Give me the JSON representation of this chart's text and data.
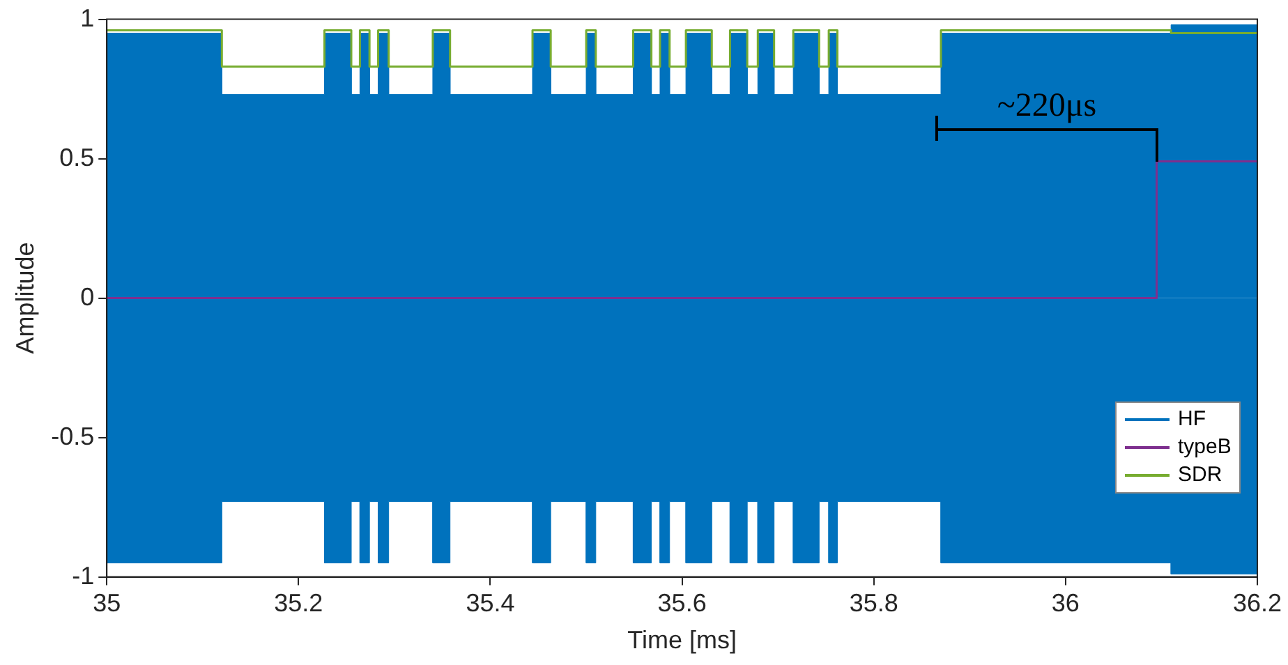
{
  "chart_data": {
    "type": "line",
    "xlabel": "Time [ms]",
    "ylabel": "Amplitude",
    "xlim": [
      35,
      36.2
    ],
    "xticks": [
      35,
      35.2,
      35.4,
      35.6,
      35.8,
      36,
      36.2
    ],
    "ylim": [
      -1,
      1
    ],
    "yticks": [
      -1,
      -0.5,
      0,
      0.5,
      1
    ],
    "grid": false,
    "legend": "bottom right",
    "marker": "none",
    "line_style": "solid",
    "annotations": [
      "~220μs"
    ],
    "series": [
      {
        "name": "HF",
        "type": "area",
        "color": "#0072bd",
        "x": [
          35,
          35.12,
          35.12,
          35.227,
          35.227,
          35.255,
          35.255,
          35.264,
          35.264,
          35.274,
          35.274,
          35.283,
          35.283,
          35.294,
          35.294,
          35.34,
          35.34,
          35.358,
          35.358,
          35.444,
          35.444,
          35.463,
          35.463,
          35.5,
          35.5,
          35.51,
          35.51,
          35.549,
          35.549,
          35.568,
          35.568,
          35.577,
          35.577,
          35.587,
          35.587,
          35.604,
          35.604,
          35.631,
          35.631,
          35.65,
          35.65,
          35.668,
          35.668,
          35.679,
          35.679,
          35.696,
          35.696,
          35.716,
          35.716,
          35.743,
          35.743,
          35.753,
          35.753,
          35.762,
          35.762,
          35.87,
          35.87,
          36.11,
          36.11,
          36.2
        ],
        "values": [
          0.95,
          0.95,
          0.73,
          0.73,
          0.95,
          0.95,
          0.73,
          0.73,
          0.95,
          0.95,
          0.73,
          0.73,
          0.95,
          0.95,
          0.73,
          0.73,
          0.95,
          0.95,
          0.73,
          0.73,
          0.95,
          0.95,
          0.73,
          0.73,
          0.95,
          0.95,
          0.73,
          0.73,
          0.95,
          0.95,
          0.73,
          0.73,
          0.95,
          0.95,
          0.73,
          0.73,
          0.95,
          0.95,
          0.73,
          0.73,
          0.95,
          0.95,
          0.73,
          0.73,
          0.95,
          0.95,
          0.73,
          0.73,
          0.95,
          0.95,
          0.73,
          0.73,
          0.95,
          0.95,
          0.73,
          0.73,
          0.95,
          0.95,
          0.98,
          0.98
        ]
      },
      {
        "type": "area",
        "color": "#0072bd",
        "x": [
          35,
          35.12,
          35.12,
          35.227,
          35.227,
          35.255,
          35.255,
          35.264,
          35.264,
          35.274,
          35.274,
          35.283,
          35.283,
          35.294,
          35.294,
          35.34,
          35.34,
          35.358,
          35.358,
          35.444,
          35.444,
          35.463,
          35.463,
          35.5,
          35.5,
          35.51,
          35.51,
          35.549,
          35.549,
          35.568,
          35.568,
          35.577,
          35.577,
          35.587,
          35.587,
          35.604,
          35.604,
          35.631,
          35.631,
          35.65,
          35.65,
          35.668,
          35.668,
          35.679,
          35.679,
          35.696,
          35.696,
          35.716,
          35.716,
          35.743,
          35.743,
          35.753,
          35.753,
          35.762,
          35.762,
          35.87,
          35.87,
          36.11,
          36.11,
          36.2
        ],
        "values": [
          -0.95,
          -0.95,
          -0.73,
          -0.73,
          -0.95,
          -0.95,
          -0.73,
          -0.73,
          -0.95,
          -0.95,
          -0.73,
          -0.73,
          -0.95,
          -0.95,
          -0.73,
          -0.73,
          -0.95,
          -0.95,
          -0.73,
          -0.73,
          -0.95,
          -0.95,
          -0.73,
          -0.73,
          -0.95,
          -0.95,
          -0.73,
          -0.73,
          -0.95,
          -0.95,
          -0.73,
          -0.73,
          -0.95,
          -0.95,
          -0.73,
          -0.73,
          -0.95,
          -0.95,
          -0.73,
          -0.73,
          -0.95,
          -0.95,
          -0.73,
          -0.73,
          -0.95,
          -0.95,
          -0.73,
          -0.73,
          -0.95,
          -0.95,
          -0.73,
          -0.73,
          -0.95,
          -0.95,
          -0.73,
          -0.73,
          -0.95,
          -0.95,
          -0.99,
          -0.99
        ]
      },
      {
        "name": "typeB",
        "color": "#7e2f8e",
        "x": [
          35,
          36.095,
          36.095,
          36.2
        ],
        "values": [
          0,
          0,
          0.49,
          0.49
        ]
      },
      {
        "name": "SDR",
        "color": "#77ac30",
        "x": [
          35,
          35.12,
          35.12,
          35.227,
          35.227,
          35.255,
          35.255,
          35.264,
          35.264,
          35.274,
          35.274,
          35.283,
          35.283,
          35.294,
          35.294,
          35.34,
          35.34,
          35.358,
          35.358,
          35.444,
          35.444,
          35.463,
          35.463,
          35.5,
          35.5,
          35.51,
          35.51,
          35.549,
          35.549,
          35.568,
          35.568,
          35.577,
          35.577,
          35.587,
          35.587,
          35.604,
          35.604,
          35.631,
          35.631,
          35.65,
          35.65,
          35.668,
          35.668,
          35.679,
          35.679,
          35.696,
          35.696,
          35.716,
          35.716,
          35.743,
          35.743,
          35.753,
          35.753,
          35.762,
          35.762,
          35.87,
          35.87,
          36.11,
          36.11,
          36.2
        ],
        "values": [
          0.96,
          0.96,
          0.83,
          0.83,
          0.96,
          0.96,
          0.83,
          0.83,
          0.96,
          0.96,
          0.83,
          0.83,
          0.96,
          0.96,
          0.83,
          0.83,
          0.96,
          0.96,
          0.83,
          0.83,
          0.96,
          0.96,
          0.83,
          0.83,
          0.96,
          0.96,
          0.83,
          0.83,
          0.96,
          0.96,
          0.83,
          0.83,
          0.96,
          0.96,
          0.83,
          0.83,
          0.96,
          0.96,
          0.83,
          0.83,
          0.96,
          0.96,
          0.83,
          0.83,
          0.96,
          0.96,
          0.83,
          0.83,
          0.96,
          0.96,
          0.83,
          0.83,
          0.96,
          0.96,
          0.83,
          0.83,
          0.96,
          0.96,
          0.95,
          0.95
        ]
      }
    ]
  }
}
